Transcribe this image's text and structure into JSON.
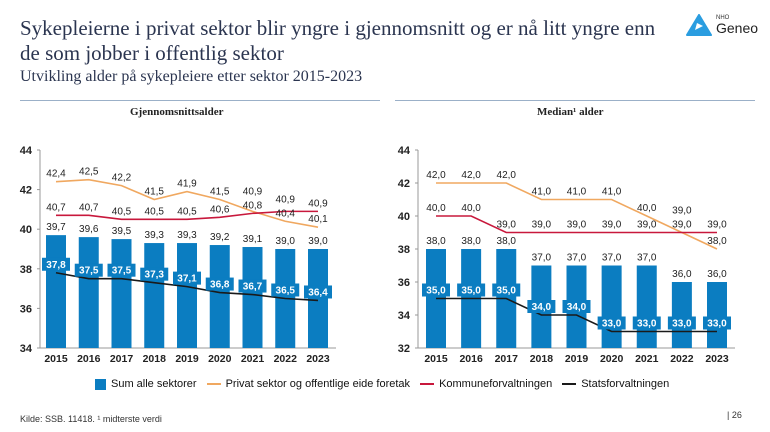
{
  "header": {
    "title": "Sykepleierne i privat sektor blir yngre i gjennomsnitt og er nå litt yngre enn de som jobber i offentlig sektor",
    "subtitle": "Utvikling alder på sykepleiere etter sektor 2015-2023",
    "logo_small": "NHO",
    "logo_big": "Geneo"
  },
  "colors": {
    "sum": "#0b7dc1",
    "privat": "#f0a860",
    "kommune": "#c8183c",
    "stat": "#1a1a1a",
    "text": "#2b3550"
  },
  "legend": [
    "Sum alle sektorer",
    "Privat sektor og offentlige eide foretak",
    "Kommuneforvaltningen",
    "Statsforvaltningen"
  ],
  "footer": {
    "source": "Kilde: SSB. 11418. ¹ midterste verdi",
    "page": "26"
  },
  "chart_data": [
    {
      "type": "bar+line",
      "title": "Gjennomsnittsalder",
      "categories": [
        "2015",
        "2016",
        "2017",
        "2018",
        "2019",
        "2020",
        "2021",
        "2022",
        "2023"
      ],
      "ylim": [
        34,
        44
      ],
      "yticks": [
        34,
        36,
        38,
        40,
        42,
        44
      ],
      "series": [
        {
          "name": "Sum alle sektorer",
          "kind": "bar",
          "values": [
            39.7,
            39.6,
            39.5,
            39.3,
            39.3,
            39.2,
            39.1,
            39.0,
            39.0
          ]
        },
        {
          "name": "Privat sektor og offentlige eide foretak",
          "kind": "line",
          "values": [
            42.4,
            42.5,
            42.2,
            41.5,
            41.9,
            41.5,
            40.9,
            40.4,
            40.1
          ]
        },
        {
          "name": "Kommuneforvaltningen",
          "kind": "line",
          "values": [
            40.7,
            40.7,
            40.5,
            40.5,
            40.5,
            40.6,
            40.8,
            40.9,
            40.9
          ]
        },
        {
          "name": "Statsforvaltningen",
          "kind": "line",
          "values": [
            37.8,
            37.5,
            37.5,
            37.3,
            37.1,
            36.8,
            36.7,
            36.5,
            36.4
          ]
        }
      ]
    },
    {
      "type": "bar+line",
      "title": "Median¹ alder",
      "categories": [
        "2015",
        "2016",
        "2017",
        "2018",
        "2019",
        "2020",
        "2021",
        "2022",
        "2023"
      ],
      "ylim": [
        32,
        44
      ],
      "yticks": [
        32,
        34,
        36,
        38,
        40,
        42,
        44
      ],
      "series": [
        {
          "name": "Sum alle sektorer",
          "kind": "bar",
          "values": [
            38.0,
            38.0,
            38.0,
            37.0,
            37.0,
            37.0,
            37.0,
            36.0,
            36.0
          ]
        },
        {
          "name": "Privat sektor og offentlige eide foretak",
          "kind": "line",
          "values": [
            42.0,
            42.0,
            42.0,
            41.0,
            41.0,
            41.0,
            40.0,
            39.0,
            38.0
          ]
        },
        {
          "name": "Kommuneforvaltningen",
          "kind": "line",
          "values": [
            40.0,
            40.0,
            39.0,
            39.0,
            39.0,
            39.0,
            39.0,
            39.0,
            39.0
          ]
        },
        {
          "name": "Statsforvaltningen",
          "kind": "line",
          "values": [
            35.0,
            35.0,
            35.0,
            34.0,
            34.0,
            33.0,
            33.0,
            33.0,
            33.0
          ]
        }
      ]
    }
  ]
}
